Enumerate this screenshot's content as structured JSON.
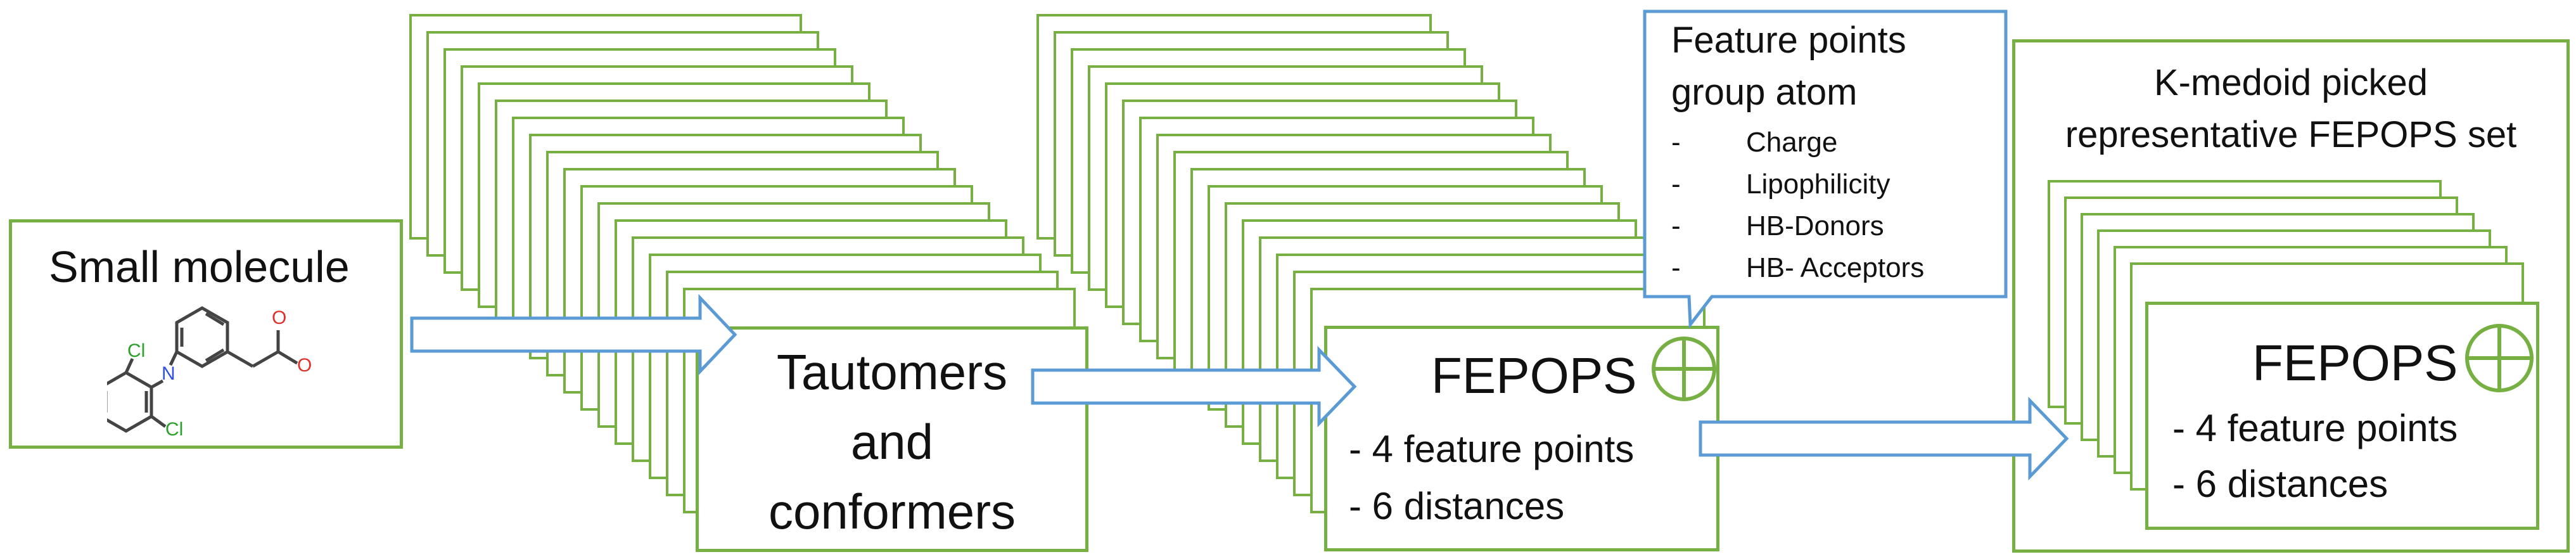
{
  "colors": {
    "frame": "#76b043",
    "arrow_stroke": "#5b9bd5",
    "callout_stroke": "#5b9bd5",
    "text": "#111111"
  },
  "small_molecule": {
    "title": "Small molecule",
    "atoms": {
      "o_label": "O",
      "n_label": "N",
      "cl_top": "Cl",
      "cl_bottom": "Cl"
    }
  },
  "tautomers": {
    "line1": "Tautomers",
    "line2": "and",
    "line3": "conformers"
  },
  "fepops": {
    "title": "FEPOPS",
    "item1": "- 4 feature points",
    "item2": "- 6 distances",
    "icon": "circle-plus-icon"
  },
  "callout": {
    "title_line1": "Feature points",
    "title_line2": "group atom",
    "items": [
      {
        "bullet": "-",
        "text": "Charge"
      },
      {
        "bullet": "-",
        "text": "Lipophilicity"
      },
      {
        "bullet": "-",
        "text": "HB-Donors"
      },
      {
        "bullet": "-",
        "text": "HB- Acceptors"
      }
    ]
  },
  "kmedoid": {
    "title_line1": "K-medoid picked",
    "title_line2": "representative FEPOPS set",
    "card_title": "FEPOPS",
    "item1": "- 4 feature points",
    "item2": "- 6 distances",
    "icon": "circle-plus-icon"
  }
}
